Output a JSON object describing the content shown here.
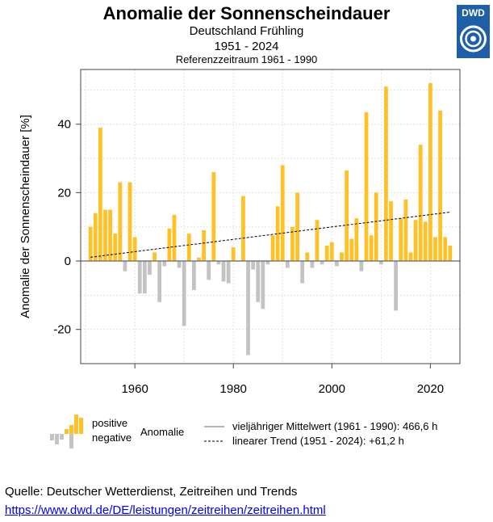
{
  "header": {
    "title": "Anomalie der Sonnenscheindauer",
    "subtitle1": "Deutschland Frühling",
    "subtitle2": "1951 - 2024",
    "subtitle3": "Referenzzeitraum 1961 - 1990",
    "logo": "DWD"
  },
  "legend": {
    "positive": "positive",
    "negative": "negative",
    "anomaly": "Anomalie",
    "mean": "vieljähriger Mittelwert (1961 - 1990): 466,6 h",
    "trend": "linearer Trend (1951 - 2024): +61,2 h"
  },
  "footer": {
    "source": "Quelle: Deutscher Wetterdienst, Zeitreihen und Trends",
    "link": "https://www.dwd.de/DE/leistungen/zeitreihen/zeitreihen.html"
  },
  "colors": {
    "positive": "#ffc125",
    "negative": "#c3c3c3",
    "grid": "#e3e3e3",
    "logo": "#1f5fa8"
  },
  "chart_data": {
    "type": "bar",
    "title": "Anomalie der Sonnenscheindauer",
    "ylabel": "Anomalie der Sonnenscheindauer [%]",
    "xlabel": "",
    "xlim": [
      1949,
      2026
    ],
    "ylim": [
      -30,
      56
    ],
    "xticks": [
      1960,
      1980,
      2000,
      2020
    ],
    "yticks": [
      -20,
      0,
      20,
      40
    ],
    "grid": true,
    "legend_position": "bottom",
    "x": [
      1951,
      1952,
      1953,
      1954,
      1955,
      1956,
      1957,
      1958,
      1959,
      1960,
      1961,
      1962,
      1963,
      1964,
      1965,
      1966,
      1967,
      1968,
      1969,
      1970,
      1971,
      1972,
      1973,
      1974,
      1975,
      1976,
      1977,
      1978,
      1979,
      1980,
      1981,
      1982,
      1983,
      1984,
      1985,
      1986,
      1987,
      1988,
      1989,
      1990,
      1991,
      1992,
      1993,
      1994,
      1995,
      1996,
      1997,
      1998,
      1999,
      2000,
      2001,
      2002,
      2003,
      2004,
      2005,
      2006,
      2007,
      2008,
      2009,
      2010,
      2011,
      2012,
      2013,
      2014,
      2015,
      2016,
      2017,
      2018,
      2019,
      2020,
      2021,
      2022,
      2023,
      2024
    ],
    "values": [
      10,
      14,
      39,
      15,
      15,
      8,
      23,
      -3,
      23,
      7,
      -9.5,
      -9.5,
      -4,
      2.5,
      -12,
      -1.5,
      9.5,
      13.5,
      -2,
      -19,
      8,
      -8.5,
      1,
      9,
      -5.5,
      26,
      -1,
      -6,
      -6.5,
      4,
      0,
      19,
      -27.5,
      -2.5,
      -12,
      -14,
      -1,
      7.5,
      16,
      28,
      -2,
      10,
      20,
      -6.5,
      2.5,
      -2,
      12,
      -1,
      4.5,
      5.5,
      -1.5,
      2.5,
      26.5,
      6.5,
      12.5,
      -3,
      43.5,
      7.5,
      20,
      -1,
      51,
      17.5,
      -14.5,
      12.5,
      18,
      2.5,
      12,
      34,
      11.5,
      52,
      7,
      44,
      7,
      4.5
    ],
    "trend": {
      "x": [
        1951,
        2024
      ],
      "y": [
        1.1,
        14.3
      ]
    },
    "mean_reference_hours": 466.6,
    "trend_hours": 61.2
  }
}
